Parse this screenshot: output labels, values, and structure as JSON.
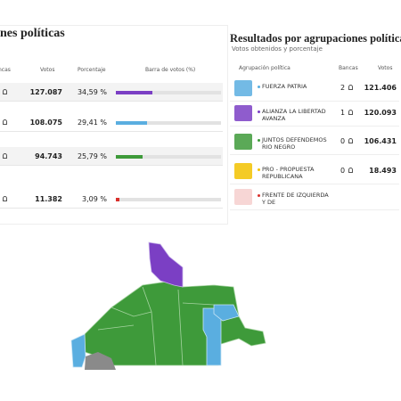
{
  "left": {
    "title": "nes políticas",
    "headers": [
      "ncas",
      "Votos",
      "Porcentaje",
      "Barra de votos (%)"
    ],
    "rows": [
      {
        "votes": "127.087",
        "percent": 34.59,
        "percent_label": "34,59 %",
        "color": "#7b3fc4"
      },
      {
        "votes": "108.075",
        "percent": 29.41,
        "percent_label": "29,41 %",
        "color": "#5aaee0"
      },
      {
        "votes": "94.743",
        "percent": 25.79,
        "percent_label": "25,79 %",
        "color": "#3e9a3a"
      },
      {
        "votes": "11.382",
        "percent": 3.09,
        "percent_label": "3,09 %",
        "color": "#d9302c"
      }
    ]
  },
  "right": {
    "title": "Resultados por agrupaciones políticas",
    "subtitle": "Votos obtenidos y porcentaje",
    "headers": [
      "Agrupación política",
      "Bancas",
      "Votos"
    ],
    "rows": [
      {
        "name": "FUERZA PATRIA",
        "seats": "2",
        "votes": "121.406",
        "color": "#5aaee0"
      },
      {
        "name": "ALIANZA LA LIBERTAD AVANZA",
        "seats": "1",
        "votes": "120.093",
        "color": "#7b3fc4"
      },
      {
        "name": "JUNTOS DEFENDEMOS RIO NEGRO",
        "seats": "0",
        "votes": "106.431",
        "color": "#3e9a3a"
      },
      {
        "name": "PRO - PROPUESTA REPUBLICANA",
        "seats": "0",
        "votes": "18.493",
        "color": "#f2c200"
      },
      {
        "name": "FRENTE DE IZQUIERDA Y DE",
        "seats": "",
        "votes": "",
        "color": "#d9302c"
      }
    ]
  }
}
